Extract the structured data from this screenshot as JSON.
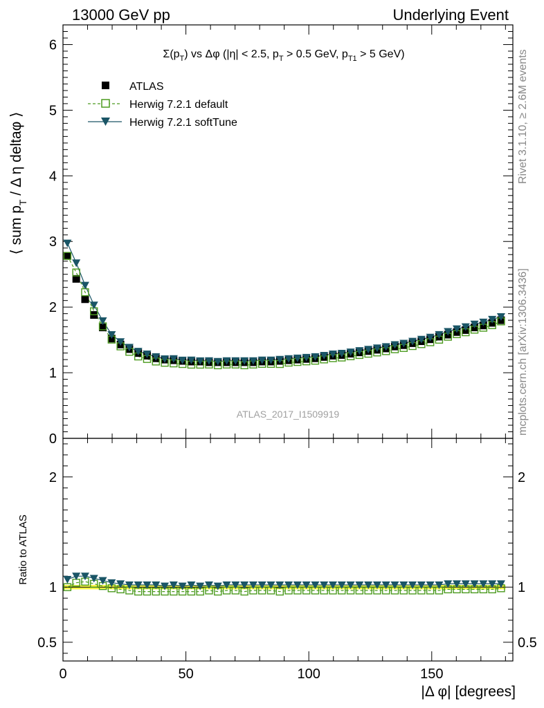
{
  "header": {
    "energy_label": "13000 GeV pp",
    "process_label": "Underlying Event"
  },
  "side_labels": {
    "rivet": "Rivet 3.1.10, ≥ 2.6M events",
    "mcplots": "mcplots.cern.ch [arXiv:1306.3436]"
  },
  "analysis_id": "ATLAS_2017_I1509919",
  "chart_data": {
    "type": "line",
    "title": "Σ(pT) vs Δφ (|η| < 2.5, pT > 0.5 GeV, pT1 > 5 GeV)",
    "title_parts": {
      "t1": "Σ(p",
      "t1_sub": "T",
      "t2": ") vs Δφ (|η| < 2.5, p",
      "t2_sub": "T",
      "t3": " > 0.5 GeV, p",
      "t3_sub": "T1",
      "t4": " > 5 GeV)"
    },
    "ylabel_main_parts": {
      "a": "⟨ sum p",
      "a_sub": "T",
      "b": " / Δ η deltaφ ⟩"
    },
    "ylabel_ratio": "Ratio to ATLAS",
    "xlabel": "|Δ φ| [degrees]",
    "xlim": [
      0,
      183
    ],
    "ylim_main": [
      0,
      6.3
    ],
    "ylim_ratio": [
      0.33,
      2.35
    ],
    "xticks": [
      0,
      50,
      100,
      150
    ],
    "yticks_main": [
      0,
      1,
      2,
      3,
      4,
      5,
      6
    ],
    "yticks_ratio": [
      0.5,
      1,
      2
    ],
    "legend_position": "top-left",
    "x": [
      1.8,
      5.4,
      9.0,
      12.6,
      16.2,
      19.8,
      23.4,
      27.0,
      30.6,
      34.2,
      37.8,
      41.4,
      45.0,
      48.6,
      52.2,
      55.8,
      59.4,
      63.0,
      66.6,
      70.2,
      73.8,
      77.4,
      81.0,
      84.6,
      88.2,
      91.8,
      95.4,
      99.0,
      102.6,
      106.2,
      109.8,
      113.4,
      117.0,
      120.6,
      124.2,
      127.8,
      131.4,
      135.0,
      138.6,
      142.2,
      145.8,
      149.4,
      153.0,
      156.6,
      160.2,
      163.8,
      167.4,
      171.0,
      174.6,
      178.2
    ],
    "series": [
      {
        "name": "ATLAS",
        "color": "#000000",
        "marker": "filled-square",
        "values": [
          2.78,
          2.43,
          2.12,
          1.88,
          1.69,
          1.52,
          1.43,
          1.36,
          1.3,
          1.26,
          1.22,
          1.2,
          1.19,
          1.18,
          1.17,
          1.17,
          1.16,
          1.16,
          1.16,
          1.16,
          1.16,
          1.16,
          1.17,
          1.17,
          1.18,
          1.19,
          1.2,
          1.21,
          1.22,
          1.24,
          1.26,
          1.27,
          1.29,
          1.31,
          1.33,
          1.35,
          1.37,
          1.4,
          1.42,
          1.45,
          1.48,
          1.51,
          1.55,
          1.58,
          1.62,
          1.65,
          1.69,
          1.72,
          1.76,
          1.8
        ]
      },
      {
        "name": "Herwig 7.2.1 default",
        "color": "#4b9a1e",
        "marker": "open-square",
        "line": "dashed",
        "ratio": [
          1.0,
          1.04,
          1.05,
          1.03,
          1.01,
          0.99,
          0.98,
          0.97,
          0.96,
          0.96,
          0.96,
          0.96,
          0.96,
          0.96,
          0.96,
          0.96,
          0.97,
          0.96,
          0.97,
          0.97,
          0.96,
          0.97,
          0.97,
          0.97,
          0.96,
          0.97,
          0.97,
          0.97,
          0.97,
          0.97,
          0.97,
          0.97,
          0.97,
          0.97,
          0.97,
          0.97,
          0.97,
          0.97,
          0.97,
          0.97,
          0.97,
          0.97,
          0.97,
          0.98,
          0.98,
          0.98,
          0.98,
          0.98,
          0.98,
          0.99
        ]
      },
      {
        "name": "Herwig 7.2.1 softTune",
        "color": "#1a5566",
        "marker": "filled-triangle-down",
        "line": "solid",
        "ratio": [
          1.07,
          1.1,
          1.1,
          1.08,
          1.06,
          1.04,
          1.03,
          1.02,
          1.02,
          1.02,
          1.02,
          1.01,
          1.02,
          1.01,
          1.02,
          1.01,
          1.02,
          1.01,
          1.02,
          1.02,
          1.02,
          1.02,
          1.02,
          1.02,
          1.02,
          1.02,
          1.02,
          1.02,
          1.02,
          1.02,
          1.02,
          1.02,
          1.02,
          1.02,
          1.02,
          1.02,
          1.02,
          1.02,
          1.02,
          1.02,
          1.02,
          1.02,
          1.02,
          1.03,
          1.03,
          1.03,
          1.03,
          1.03,
          1.03,
          1.03
        ]
      }
    ],
    "ratio_band_color": "#f5f533"
  }
}
